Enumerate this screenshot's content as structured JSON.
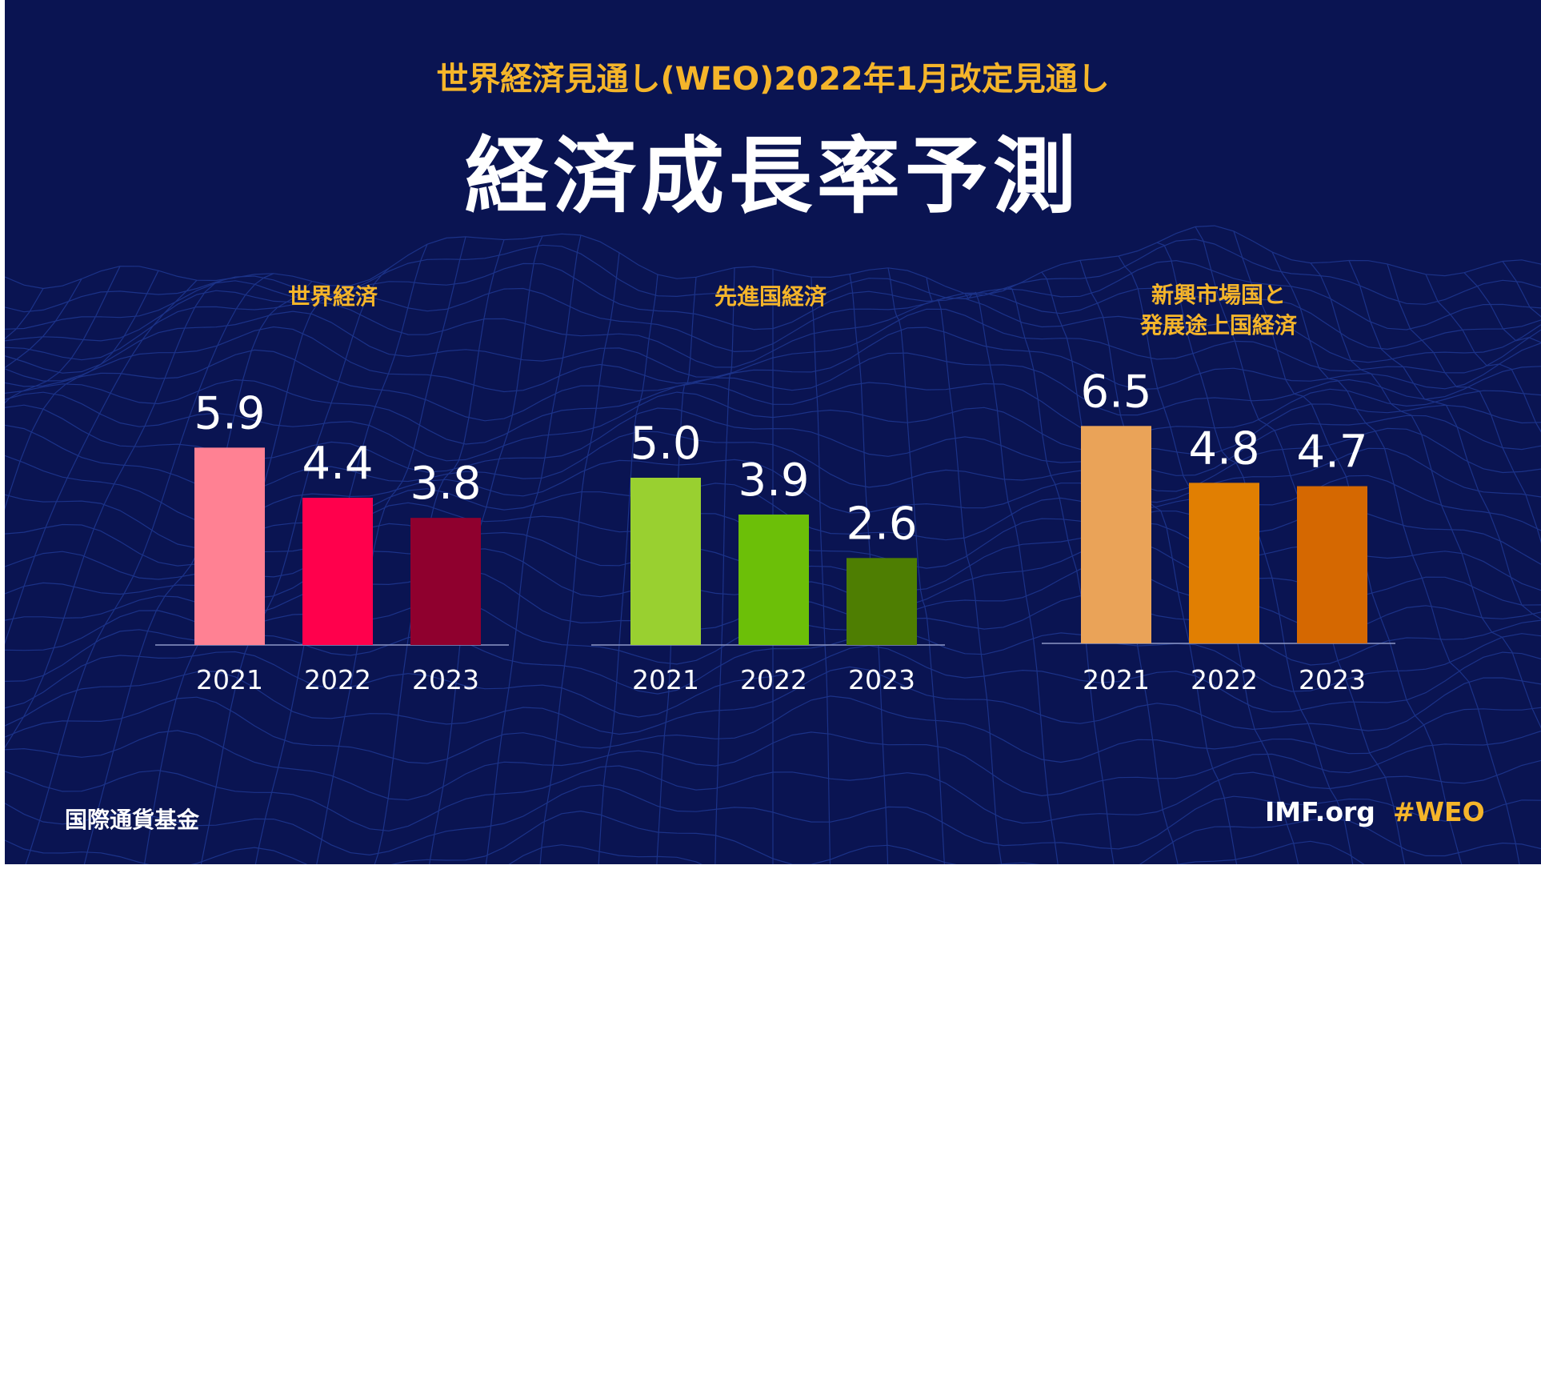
{
  "header": {
    "subtitle": "世界経済見通し(WEO)2022年1月改定見通し",
    "title": "経済成長率予測"
  },
  "footer": {
    "org": "国際通貨基金",
    "site": "IMF.org",
    "hashtag": "#WEO"
  },
  "chart_data": [
    {
      "type": "bar",
      "title": "世界経済",
      "categories": [
        "2021",
        "2022",
        "2023"
      ],
      "values": [
        5.9,
        4.4,
        3.8
      ],
      "value_labels": [
        "5.9",
        "4.4",
        "3.8"
      ],
      "colors": [
        "#ff8193",
        "#ff004c",
        "#8f002e"
      ]
    },
    {
      "type": "bar",
      "title": "先進国経済",
      "categories": [
        "2021",
        "2022",
        "2023"
      ],
      "values": [
        5.0,
        3.9,
        2.6
      ],
      "value_labels": [
        "5.0",
        "3.9",
        "2.6"
      ],
      "colors": [
        "#99d030",
        "#6cbf08",
        "#4e7e02"
      ]
    },
    {
      "type": "bar",
      "title_lines": [
        "新興市場国と",
        "発展途上国経済"
      ],
      "categories": [
        "2021",
        "2022",
        "2023"
      ],
      "values": [
        6.5,
        4.8,
        4.7
      ],
      "value_labels": [
        "6.5",
        "4.8",
        "4.7"
      ],
      "colors": [
        "#eaa358",
        "#e17f02",
        "#d56801"
      ]
    }
  ],
  "colors": {
    "background": "#0a1452",
    "accent": "#f5b52a",
    "text": "#ffffff"
  }
}
